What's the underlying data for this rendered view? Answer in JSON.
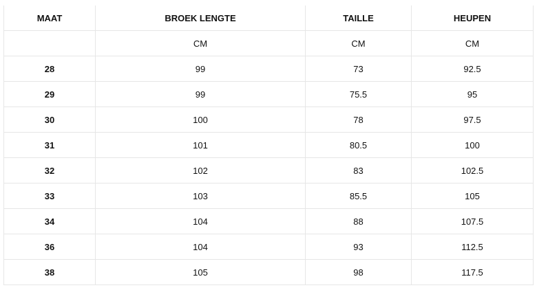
{
  "headers": [
    "MAAT",
    "BROEK LENGTE",
    "TAILLE",
    "HEUPEN"
  ],
  "units": [
    "",
    "CM",
    "CM",
    "CM"
  ],
  "rows": [
    [
      "28",
      "99",
      "73",
      "92.5"
    ],
    [
      "29",
      "99",
      "75.5",
      "95"
    ],
    [
      "30",
      "100",
      "78",
      "97.5"
    ],
    [
      "31",
      "101",
      "80.5",
      "100"
    ],
    [
      "32",
      "102",
      "83",
      "102.5"
    ],
    [
      "33",
      "103",
      "85.5",
      "105"
    ],
    [
      "34",
      "104",
      "88",
      "107.5"
    ],
    [
      "36",
      "104",
      "93",
      "112.5"
    ],
    [
      "38",
      "105",
      "98",
      "117.5"
    ]
  ]
}
